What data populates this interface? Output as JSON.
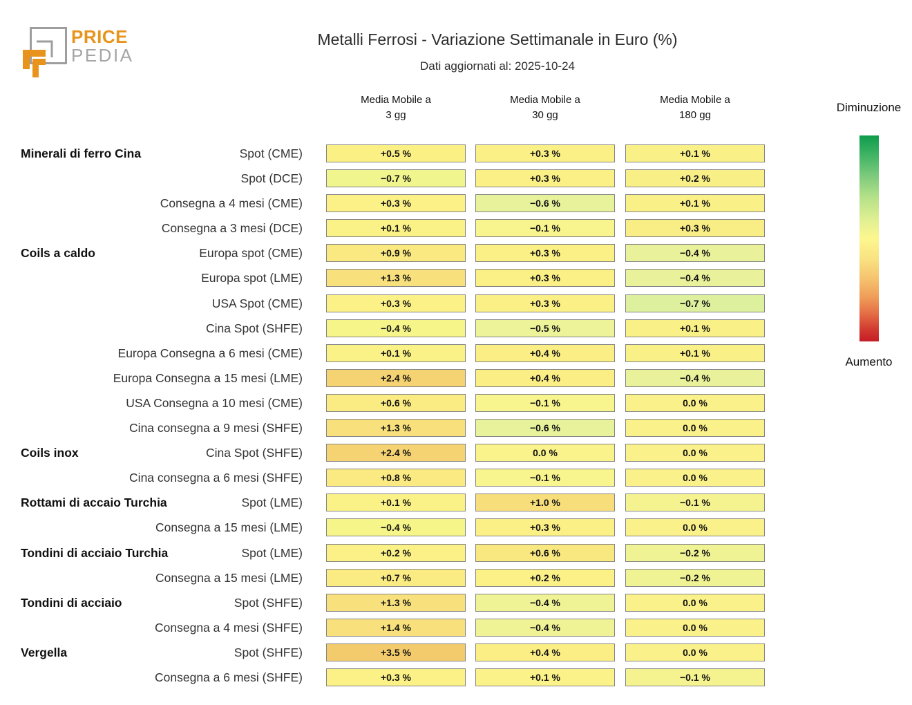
{
  "logo": {
    "brand_top": "PRICE",
    "brand_bottom": "PEDIA",
    "orange": "#e8941c",
    "gray": "#9e9e9e"
  },
  "legend": {
    "top_label": "Diminuzione",
    "bottom_label": "Aumento",
    "gradient_colors": [
      "#0d9c4b",
      "#3eb263",
      "#7fcb7d",
      "#b5e189",
      "#e0ef93",
      "#fdf78f",
      "#f9e281",
      "#f5c16d",
      "#ef9a58",
      "#e36a44",
      "#d23b2f",
      "#c41d27"
    ],
    "gradient_stops_pct": [
      0,
      9,
      20,
      30,
      41,
      50,
      60,
      70,
      79,
      87,
      94,
      100
    ]
  },
  "chart_data": {
    "type": "heatmap",
    "title": "Metalli Ferrosi - Variazione Settimanale in Euro (%)",
    "subtitle": "Dati aggiornati al: 2025-10-24",
    "value_unit": "%",
    "columns": [
      {
        "line1": "Media Mobile a",
        "line2": "3 gg"
      },
      {
        "line1": "Media Mobile a",
        "line2": "30 gg"
      },
      {
        "line1": "Media Mobile a",
        "line2": "180 gg"
      }
    ],
    "legend_note": "green = Diminuzione (top), red = Aumento (bottom)",
    "rows": [
      {
        "group": "Minerali di ferro Cina",
        "label": "Spot (CME)",
        "values": [
          0.5,
          0.3,
          0.1
        ],
        "display": [
          "+0.5 %",
          "+0.3 %",
          "+0.1 %"
        ],
        "colors": [
          "#FBF083",
          "#FBF085",
          "#FAF088"
        ]
      },
      {
        "group": "",
        "label": "Spot (DCE)",
        "values": [
          -0.7,
          0.3,
          0.2
        ],
        "display": [
          "−0.7 %",
          "+0.3 %",
          "+0.2 %"
        ],
        "colors": [
          "#F1F58D",
          "#FBF085",
          "#F9EF87"
        ]
      },
      {
        "group": "",
        "label": "Consegna a 4 mesi (CME)",
        "values": [
          0.3,
          -0.6,
          0.1
        ],
        "display": [
          "+0.3 %",
          "−0.6 %",
          "+0.1 %"
        ],
        "colors": [
          "#FBF186",
          "#E7F29B",
          "#FAF088"
        ]
      },
      {
        "group": "",
        "label": "Consegna a 3 mesi (DCE)",
        "values": [
          0.1,
          -0.1,
          0.3
        ],
        "display": [
          "+0.1 %",
          "−0.1 %",
          "+0.3 %"
        ],
        "colors": [
          "#FBF287",
          "#F8F58E",
          "#F9ED85"
        ]
      },
      {
        "group": "Coils a caldo",
        "label": "Europa spot (CME)",
        "values": [
          0.9,
          0.3,
          -0.4
        ],
        "display": [
          "+0.9 %",
          "+0.3 %",
          "−0.4 %"
        ],
        "colors": [
          "#FAE981",
          "#FBF085",
          "#E9F29A"
        ]
      },
      {
        "group": "",
        "label": "Europa spot (LME)",
        "values": [
          1.3,
          0.3,
          -0.4
        ],
        "display": [
          "+1.3 %",
          "+0.3 %",
          "−0.4 %"
        ],
        "colors": [
          "#F8E17D",
          "#FBF085",
          "#E9F29A"
        ]
      },
      {
        "group": "",
        "label": "USA Spot (CME)",
        "values": [
          0.3,
          0.3,
          -0.7
        ],
        "display": [
          "+0.3 %",
          "+0.3 %",
          "−0.7 %"
        ],
        "colors": [
          "#FBF186",
          "#FBF085",
          "#DCF09D"
        ]
      },
      {
        "group": "",
        "label": "Cina Spot (SHFE)",
        "values": [
          -0.4,
          -0.5,
          0.1
        ],
        "display": [
          "−0.4 %",
          "−0.5 %",
          "+0.1 %"
        ],
        "colors": [
          "#F5F58A",
          "#ECF399",
          "#FAF088"
        ]
      },
      {
        "group": "",
        "label": "Europa Consegna a 6 mesi (CME)",
        "values": [
          0.1,
          0.4,
          0.1
        ],
        "display": [
          "+0.1 %",
          "+0.4 %",
          "+0.1 %"
        ],
        "colors": [
          "#FBF287",
          "#FBEE85",
          "#FAF088"
        ]
      },
      {
        "group": "",
        "label": "Europa Consegna a 15 mesi (LME)",
        "values": [
          2.4,
          0.4,
          -0.4
        ],
        "display": [
          "+2.4 %",
          "+0.4 %",
          "−0.4 %"
        ],
        "colors": [
          "#F5D373",
          "#FBEE85",
          "#E9F29A"
        ]
      },
      {
        "group": "",
        "label": "USA Consegna a 10 mesi (CME)",
        "values": [
          0.6,
          -0.1,
          0.0
        ],
        "display": [
          "+0.6 %",
          "−0.1 %",
          "0.0 %"
        ],
        "colors": [
          "#FAEC82",
          "#F8F58E",
          "#FAF18A"
        ]
      },
      {
        "group": "",
        "label": "Cina consegna a 9 mesi (SHFE)",
        "values": [
          1.3,
          -0.6,
          0.0
        ],
        "display": [
          "+1.3 %",
          "−0.6 %",
          "0.0 %"
        ],
        "colors": [
          "#F8E17D",
          "#E7F29B",
          "#FAF18A"
        ]
      },
      {
        "group": "Coils inox",
        "label": "Cina Spot (SHFE)",
        "values": [
          2.4,
          0.0,
          0.0
        ],
        "display": [
          "+2.4 %",
          "0.0 %",
          "0.0 %"
        ],
        "colors": [
          "#F5D373",
          "#FAF28A",
          "#FAF18A"
        ]
      },
      {
        "group": "",
        "label": "Cina consegna a 6 mesi (SHFE)",
        "values": [
          0.8,
          -0.1,
          0.0
        ],
        "display": [
          "+0.8 %",
          "−0.1 %",
          "0.0 %"
        ],
        "colors": [
          "#FAEA81",
          "#F8F58E",
          "#FAF18A"
        ]
      },
      {
        "group": "Rottami di accaio Turchia",
        "label": "Spot (LME)",
        "values": [
          0.1,
          1.0,
          -0.1
        ],
        "display": [
          "+0.1 %",
          "+1.0 %",
          "−0.1 %"
        ],
        "colors": [
          "#FBF287",
          "#F7DE7B",
          "#F5F390"
        ]
      },
      {
        "group": "",
        "label": "Consegna a 15 mesi (LME)",
        "values": [
          -0.4,
          0.3,
          0.0
        ],
        "display": [
          "−0.4 %",
          "+0.3 %",
          "0.0 %"
        ],
        "colors": [
          "#F5F58A",
          "#FBF085",
          "#FAF18A"
        ]
      },
      {
        "group": "Tondini di acciaio Turchia",
        "label": "Spot (LME)",
        "values": [
          0.2,
          0.6,
          -0.2
        ],
        "display": [
          "+0.2 %",
          "+0.6 %",
          "−0.2 %"
        ],
        "colors": [
          "#FBF186",
          "#F9E880",
          "#F0F393"
        ]
      },
      {
        "group": "",
        "label": "Consegna a 15 mesi (LME)",
        "values": [
          0.7,
          0.2,
          -0.2
        ],
        "display": [
          "+0.7 %",
          "+0.2 %",
          "−0.2 %"
        ],
        "colors": [
          "#FAEB82",
          "#FBF187",
          "#F0F393"
        ]
      },
      {
        "group": "Tondini di acciaio",
        "label": "Spot (SHFE)",
        "values": [
          1.3,
          -0.4,
          0.0
        ],
        "display": [
          "+1.3 %",
          "−0.4 %",
          "0.0 %"
        ],
        "colors": [
          "#F8E17D",
          "#EFF295",
          "#FAF18A"
        ]
      },
      {
        "group": "",
        "label": "Consegna a 4 mesi (SHFE)",
        "values": [
          1.4,
          -0.4,
          0.0
        ],
        "display": [
          "+1.4 %",
          "−0.4 %",
          "0.0 %"
        ],
        "colors": [
          "#F8E07C",
          "#EFF295",
          "#FAF18A"
        ]
      },
      {
        "group": "Vergella",
        "label": "Spot (SHFE)",
        "values": [
          3.5,
          0.4,
          0.0
        ],
        "display": [
          "+3.5 %",
          "+0.4 %",
          "0.0 %"
        ],
        "colors": [
          "#F3CB6C",
          "#FBEE85",
          "#FAF18A"
        ]
      },
      {
        "group": "",
        "label": "Consegna a 6 mesi (SHFE)",
        "values": [
          0.3,
          0.1,
          -0.1
        ],
        "display": [
          "+0.3 %",
          "+0.1 %",
          "−0.1 %"
        ],
        "colors": [
          "#FBF186",
          "#FBF289",
          "#F5F390"
        ]
      }
    ]
  }
}
